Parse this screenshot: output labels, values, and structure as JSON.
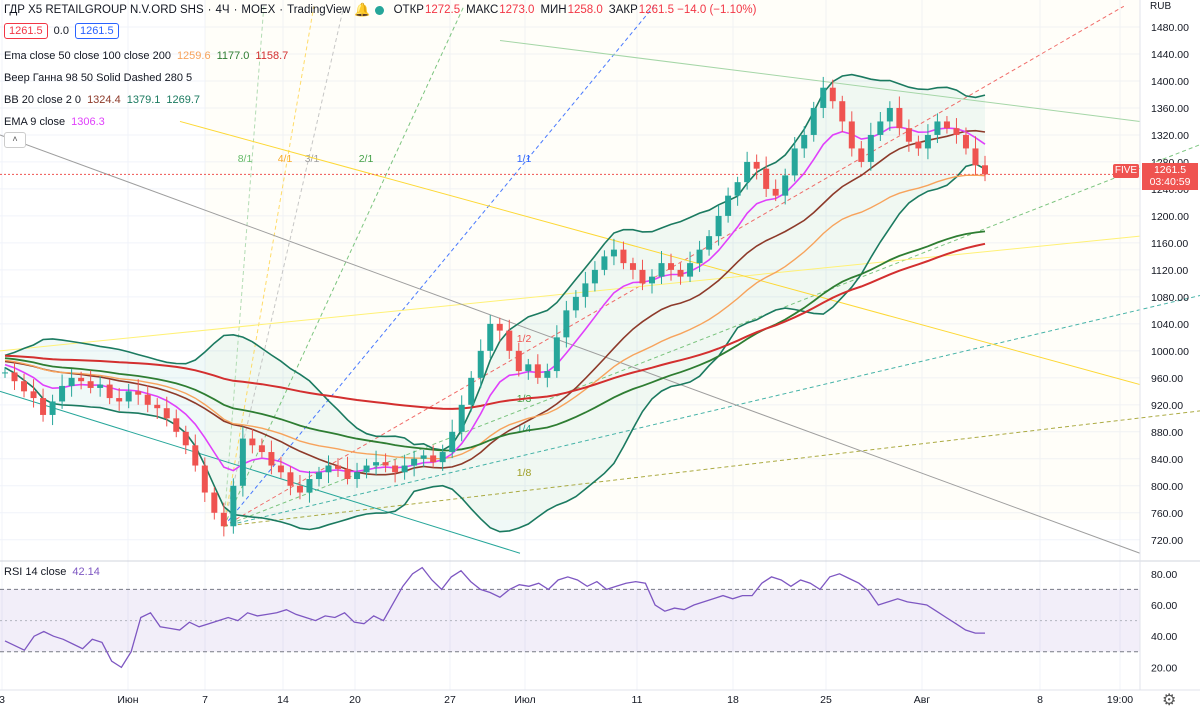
{
  "header": {
    "title": "ГДР X5 RETAILGROUP N.V.ORD SHS",
    "interval": "4Ч",
    "exchange": "MOEX",
    "source": "TradingView",
    "ohlc": [
      {
        "k": "ОТКР",
        "v": "1272.5"
      },
      {
        "k": "МАКС",
        "v": "1273.0"
      },
      {
        "k": "МИН",
        "v": "1258.0"
      },
      {
        "k": "ЗАКР",
        "v": "1261.5 −14.0 (−1.10%)"
      }
    ],
    "sell_price": "1261.5",
    "spread": "0.0",
    "buy_price": "1261.5",
    "currency": "RUB"
  },
  "legend": [
    {
      "label": "Ema close 50 close 100 close 200",
      "values": [
        {
          "v": "1259.6",
          "color": "#f7a35c"
        },
        {
          "v": "1177.0",
          "color": "#2e7d32"
        },
        {
          "v": "1158.7",
          "color": "#d32f2f"
        }
      ]
    },
    {
      "label": "Веер Ганна 98 50 Solid Dashed 280 5",
      "values": []
    },
    {
      "label": "BB 20 close 2 0",
      "values": [
        {
          "v": "1324.4",
          "color": "#8d3a2a"
        },
        {
          "v": "1379.1",
          "color": "#1b7a60"
        },
        {
          "v": "1269.7",
          "color": "#1b7a60"
        }
      ]
    },
    {
      "label": "EMA 9 close",
      "values": [
        {
          "v": "1306.3",
          "color": "#e040fb"
        }
      ]
    }
  ],
  "rsi": {
    "label": "RSI 14 close",
    "value": "42.14",
    "value_color": "#7e57c2",
    "upper": 70,
    "lower": 30,
    "ticks": [
      80,
      60,
      40,
      20
    ],
    "values": [
      37,
      34,
      31,
      40,
      43,
      40,
      38,
      35,
      32,
      38,
      36,
      24,
      20,
      30,
      52,
      55,
      46,
      45,
      44,
      49,
      46,
      48,
      50,
      52,
      50,
      55,
      53,
      54,
      55,
      57,
      54,
      52,
      50,
      53,
      52,
      55,
      49,
      48,
      53,
      50,
      61,
      72,
      80,
      84,
      76,
      70,
      78,
      82,
      75,
      70,
      68,
      65,
      70,
      73,
      72,
      74,
      70,
      76,
      78,
      76,
      72,
      75,
      70,
      72,
      74,
      75,
      74,
      60,
      56,
      58,
      57,
      60,
      62,
      64,
      66,
      64,
      66,
      66,
      74,
      78,
      76,
      72,
      76,
      74,
      70,
      78,
      80,
      77,
      74,
      69,
      60,
      62,
      64,
      62,
      61,
      60,
      56,
      52,
      48,
      44,
      42,
      42
    ]
  },
  "gann_labels": [
    "8/1",
    "4/1",
    "3/1",
    "2/1",
    "1/1",
    "1/2",
    "1/3",
    "1/4",
    "1/8"
  ],
  "symbol_tag": "FIVE",
  "last_price": "1261.5",
  "countdown": "03:40:59",
  "chart_data": {
    "type": "candlestick",
    "title": "ГДР X5 RETAILGROUP N.V.ORD SHS · 4Ч · MOEX",
    "ylim": [
      690,
      1520
    ],
    "y_ticks": [
      1480,
      1440,
      1400,
      1360,
      1320,
      1280,
      1240,
      1200,
      1160,
      1120,
      1080,
      1040,
      1000,
      960,
      920,
      880,
      840,
      800,
      760,
      720
    ],
    "x_ticks": [
      "3",
      "Июн",
      "7",
      "14",
      "20",
      "27",
      "Июл",
      "11",
      "18",
      "25",
      "Авг",
      "8",
      "19:00"
    ],
    "close": [
      968,
      955,
      940,
      930,
      905,
      925,
      948,
      960,
      955,
      945,
      950,
      930,
      925,
      940,
      935,
      920,
      915,
      900,
      880,
      860,
      830,
      790,
      760,
      740,
      800,
      870,
      860,
      850,
      830,
      820,
      800,
      790,
      810,
      820,
      830,
      825,
      810,
      820,
      830,
      835,
      830,
      820,
      830,
      840,
      845,
      835,
      850,
      880,
      920,
      960,
      1000,
      1040,
      1030,
      1000,
      970,
      980,
      960,
      970,
      1020,
      1060,
      1080,
      1100,
      1120,
      1140,
      1150,
      1130,
      1120,
      1100,
      1110,
      1130,
      1120,
      1110,
      1130,
      1150,
      1170,
      1200,
      1230,
      1250,
      1280,
      1270,
      1240,
      1230,
      1260,
      1300,
      1320,
      1360,
      1390,
      1370,
      1340,
      1300,
      1280,
      1320,
      1340,
      1360,
      1330,
      1310,
      1300,
      1320,
      1340,
      1330,
      1320,
      1300,
      1275,
      1261.5
    ],
    "series": [
      {
        "name": "EMA 9 close",
        "last": 1306.3
      },
      {
        "name": "EMA 50",
        "last": 1259.6
      },
      {
        "name": "EMA 100",
        "last": 1177.0
      },
      {
        "name": "EMA 200",
        "last": 1158.7
      },
      {
        "name": "BB basis",
        "last": 1324.4
      },
      {
        "name": "BB upper",
        "last": 1379.1
      },
      {
        "name": "BB lower",
        "last": 1269.7
      }
    ]
  }
}
